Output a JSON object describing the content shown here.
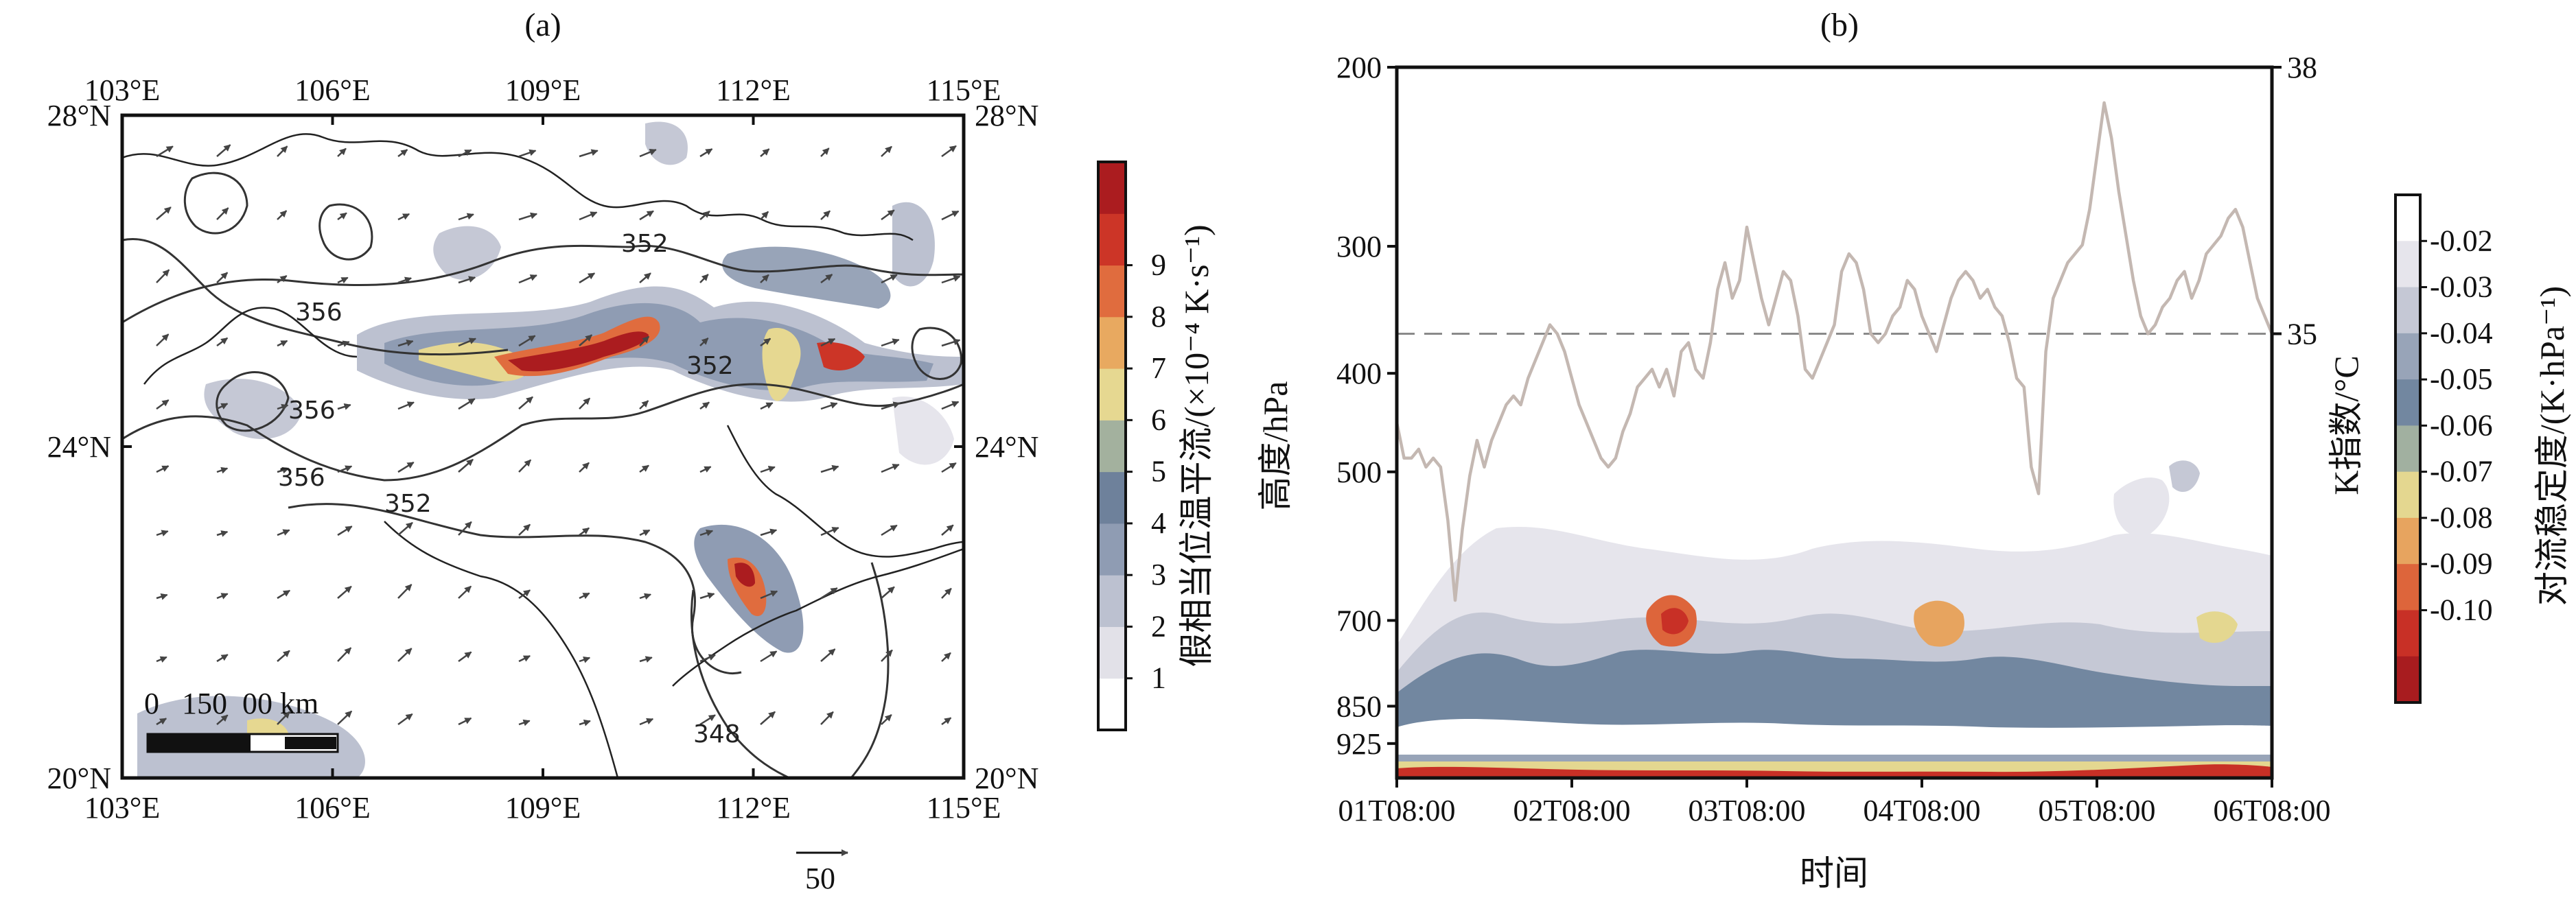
{
  "colors": {
    "axis": "#111111",
    "k_index_line": "#c4b8b2",
    "reference_line": "#8a8a8a",
    "map_contour": "#333333",
    "map_boundary": "#222222"
  },
  "chart_data": [
    {
      "panel": "(a)",
      "type": "heatmap",
      "title": "(a)",
      "x_ticks_top": [
        "103°E",
        "106°E",
        "109°E",
        "112°E",
        "115°E"
      ],
      "x_ticks_bottom": [
        "103°E",
        "106°E",
        "109°E",
        "112°E",
        "115°E"
      ],
      "y_ticks_left": [
        "28°N",
        "24°N",
        "20°N"
      ],
      "y_ticks_right": [
        "28°N",
        "24°N",
        "20°N"
      ],
      "x_values": [
        103,
        106,
        109,
        112,
        115
      ],
      "y_values": [
        28,
        24,
        20
      ],
      "xlim": [
        103,
        115
      ],
      "ylim": [
        20,
        28
      ],
      "colorbar": {
        "label": "假相当位温平流/(×10⁻⁴ K·s⁻¹)",
        "ticks": [
          "1",
          "2",
          "3",
          "4",
          "5",
          "6",
          "7",
          "8",
          "9"
        ],
        "colors": [
          "#ffffff",
          "#e2e1e8",
          "#bcc1d0",
          "#8f9cb3",
          "#6e819b",
          "#a3b19e",
          "#e6d891",
          "#e8a960",
          "#e06c3e",
          "#cc3527",
          "#ab1c1f"
        ]
      },
      "contour_labels": [
        "352",
        "356",
        "352",
        "356",
        "356",
        "352",
        "348"
      ],
      "contour_values": [
        352,
        356,
        352,
        356,
        356,
        352,
        348
      ],
      "scale_bar": {
        "label": "0   150  00 km",
        "vector_reference": "50"
      },
      "wind_vector_reference": 50
    },
    {
      "panel": "(b)",
      "type": "line",
      "title": "(b)",
      "xlabel": "时间",
      "ylabel_left": "高度/hPa",
      "ylabel_right": "K指数/°C",
      "x_ticks": [
        "01T08:00",
        "02T08:00",
        "03T08:00",
        "04T08:00",
        "05T08:00",
        "06T08:00"
      ],
      "y_ticks_left": [
        "200",
        "300",
        "400",
        "500",
        "700",
        "850",
        "925"
      ],
      "y_ticks_right": [
        "38",
        "35"
      ],
      "y_left_values": [
        200,
        300,
        400,
        500,
        700,
        850,
        925
      ],
      "y_right_values": [
        38,
        35
      ],
      "ylim_left": [
        200,
        1000
      ],
      "ylim_right": [
        30,
        38
      ],
      "reference_line_k": 35,
      "series": [
        {
          "x_hours": [
            0,
            1,
            2,
            3,
            4,
            5,
            6,
            7,
            8,
            9,
            10,
            11,
            12,
            13,
            14,
            15,
            16,
            17,
            18,
            19,
            20,
            21,
            22,
            23,
            24,
            25,
            26,
            27,
            28,
            29,
            30,
            31,
            32,
            33,
            34,
            35,
            36,
            37,
            38,
            39,
            40,
            41,
            42,
            43,
            44,
            45,
            46,
            47,
            48,
            49,
            50,
            51,
            52,
            53,
            54,
            55,
            56,
            57,
            58,
            59,
            60,
            61,
            62,
            63,
            64,
            65,
            66,
            67,
            68,
            69,
            70,
            71,
            72,
            73,
            74,
            75,
            76,
            77,
            78,
            79,
            80,
            81,
            82,
            83,
            84,
            85,
            86,
            87,
            88,
            89,
            90,
            91,
            92,
            93,
            94,
            95,
            96,
            97,
            98,
            99,
            100,
            101,
            102,
            103,
            104,
            105,
            106,
            107,
            108,
            109,
            110,
            111,
            112,
            113,
            114,
            115,
            116,
            117,
            118,
            119,
            120
          ],
          "values": [
            34.0,
            33.6,
            33.6,
            33.7,
            33.5,
            33.6,
            33.5,
            32.9,
            32.0,
            32.8,
            33.4,
            33.8,
            33.5,
            33.8,
            34.0,
            34.2,
            34.3,
            34.2,
            34.5,
            34.7,
            34.9,
            35.1,
            35.0,
            34.8,
            34.5,
            34.2,
            34.0,
            33.8,
            33.6,
            33.5,
            33.6,
            33.9,
            34.1,
            34.4,
            34.5,
            34.6,
            34.4,
            34.6,
            34.3,
            34.8,
            34.9,
            34.6,
            34.5,
            34.9,
            35.5,
            35.8,
            35.4,
            35.6,
            36.2,
            35.8,
            35.4,
            35.1,
            35.4,
            35.7,
            35.6,
            35.2,
            34.6,
            34.5,
            34.7,
            34.9,
            35.1,
            35.7,
            35.9,
            35.8,
            35.5,
            35.0,
            34.9,
            35.0,
            35.2,
            35.3,
            35.6,
            35.5,
            35.2,
            35.0,
            34.8,
            35.1,
            35.4,
            35.6,
            35.7,
            35.6,
            35.4,
            35.5,
            35.3,
            35.2,
            34.9,
            34.5,
            34.4,
            33.5,
            33.2,
            34.8,
            35.4,
            35.6,
            35.8,
            35.9,
            36.0,
            36.4,
            37.0,
            37.6,
            37.2,
            36.6,
            36.1,
            35.6,
            35.2,
            35.0,
            35.1,
            35.3,
            35.4,
            35.6,
            35.7,
            35.4,
            35.6,
            35.9,
            36.0,
            36.1,
            36.3,
            36.4,
            36.2,
            35.8,
            35.4,
            35.2,
            35.0
          ]
        }
      ],
      "colorbar": {
        "label": "对流稳定度/(K·hPa⁻¹)",
        "ticks": [
          "-0.02",
          "-0.03",
          "-0.04",
          "-0.05",
          "-0.06",
          "-0.07",
          "-0.08",
          "-0.09",
          "-0.10"
        ],
        "colors": [
          "#ffffff",
          "#e6e5ec",
          "#c5c8d5",
          "#98a4b8",
          "#7287a0",
          "#a1b0a0",
          "#e4d790",
          "#e7a45f",
          "#dd653b",
          "#c83026",
          "#a81c1f"
        ]
      }
    }
  ]
}
